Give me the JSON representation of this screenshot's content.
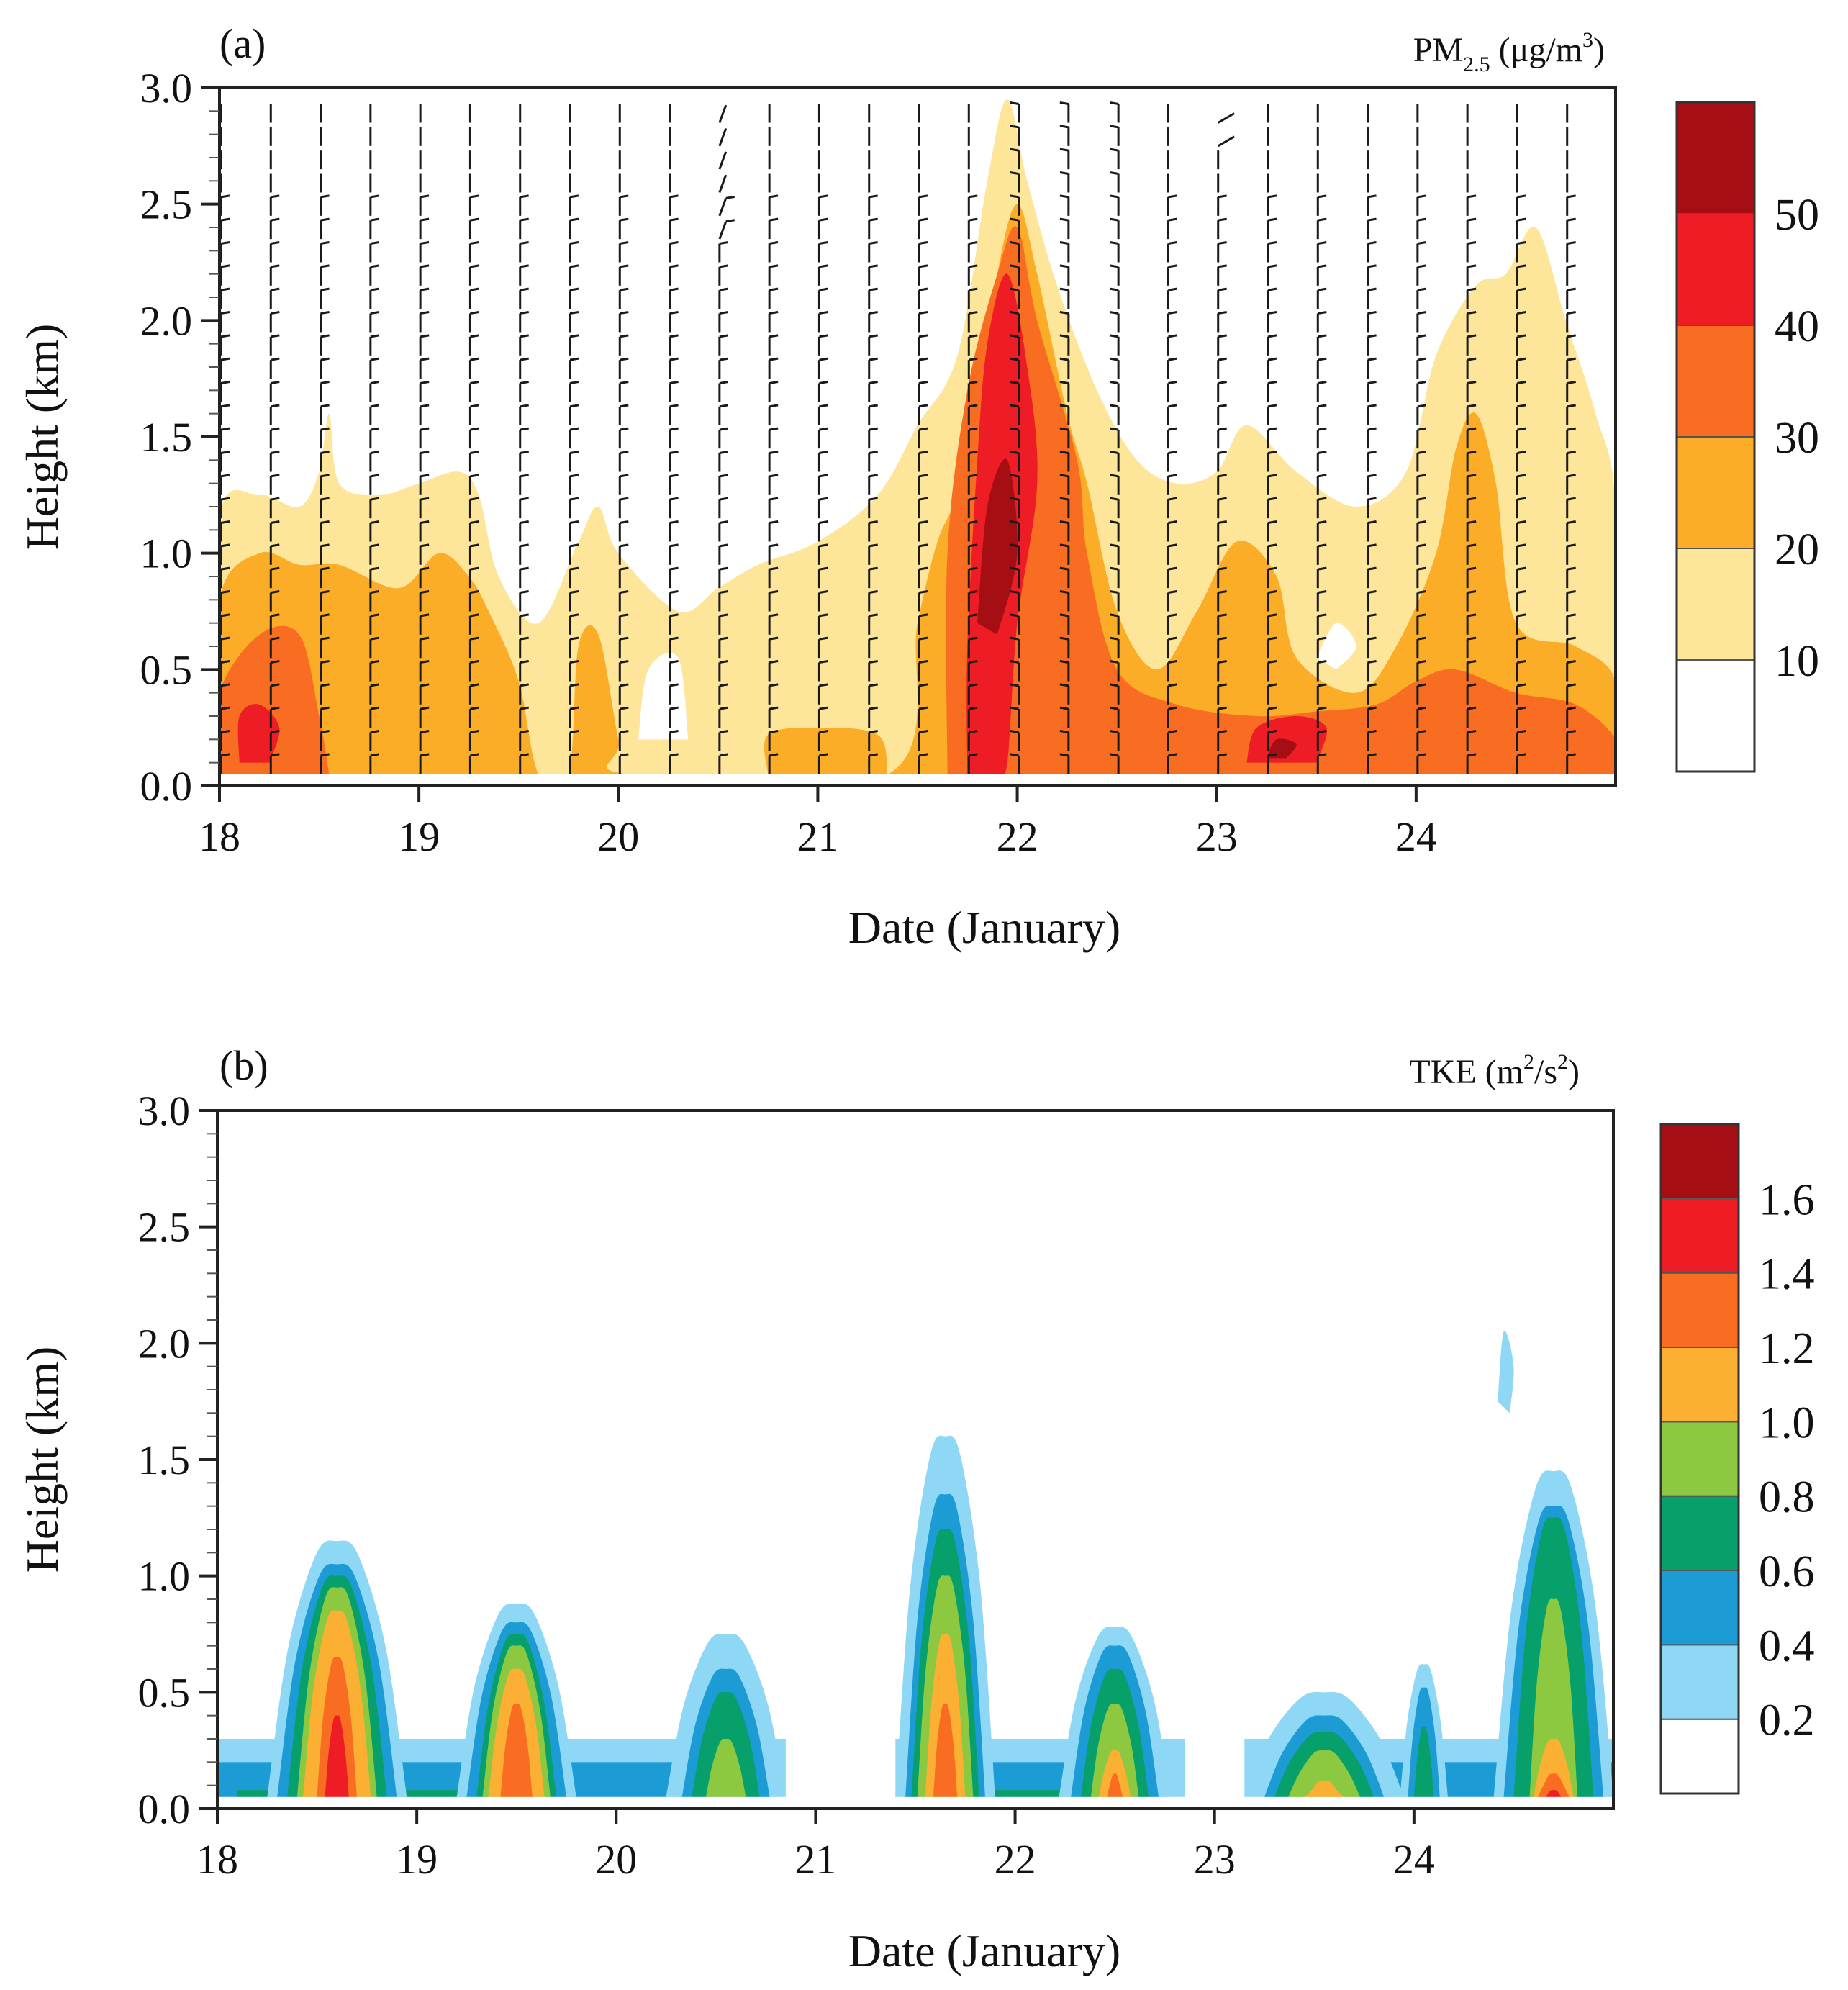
{
  "chart_data": [
    {
      "type": "heatmap",
      "panel_label": "(a)",
      "variable": {
        "name": "PM",
        "subscript": "2.5",
        "units_open": " (μg/m",
        "units_sup": "3",
        "units_close": ")"
      },
      "xlabel": "Date  (January)",
      "ylabel": "Height (km)",
      "x_ticks": [
        "18",
        "19",
        "20",
        "21",
        "22",
        "23",
        "24"
      ],
      "x_range": [
        18,
        25
      ],
      "y_ticks": [
        "0.0",
        "0.5",
        "1.0",
        "1.5",
        "2.0",
        "2.5",
        "3.0"
      ],
      "y_range": [
        0,
        3
      ],
      "colorbar": {
        "labels": [
          "10",
          "20",
          "30",
          "40",
          "50"
        ],
        "colors": [
          "#ffffff",
          "#fde59a",
          "#fbad27",
          "#f96d22",
          "#ee1c25",
          "#a50e12"
        ]
      },
      "contours": [
        {
          "level": 10,
          "color": "#fde59a",
          "points": [
            [
              18,
              0.05
            ],
            [
              18,
              1.15
            ],
            [
              18.2,
              1.25
            ],
            [
              18.4,
              1.2
            ],
            [
              18.5,
              1.35
            ],
            [
              18.55,
              1.6
            ],
            [
              18.6,
              1.3
            ],
            [
              18.8,
              1.25
            ],
            [
              19.0,
              1.3
            ],
            [
              19.2,
              1.35
            ],
            [
              19.3,
              1.25
            ],
            [
              19.4,
              0.9
            ],
            [
              19.6,
              0.7
            ],
            [
              19.8,
              1.05
            ],
            [
              19.9,
              1.2
            ],
            [
              20.0,
              1.0
            ],
            [
              20.3,
              0.75
            ],
            [
              20.5,
              0.85
            ],
            [
              20.7,
              0.95
            ],
            [
              21.0,
              1.05
            ],
            [
              21.3,
              1.25
            ],
            [
              21.5,
              1.55
            ],
            [
              21.7,
              1.85
            ],
            [
              21.85,
              2.6
            ],
            [
              21.95,
              2.95
            ],
            [
              22.05,
              2.6
            ],
            [
              22.2,
              2.15
            ],
            [
              22.4,
              1.7
            ],
            [
              22.6,
              1.4
            ],
            [
              22.8,
              1.3
            ],
            [
              23.0,
              1.35
            ],
            [
              23.15,
              1.55
            ],
            [
              23.4,
              1.35
            ],
            [
              23.7,
              1.2
            ],
            [
              23.95,
              1.35
            ],
            [
              24.1,
              1.85
            ],
            [
              24.3,
              2.15
            ],
            [
              24.45,
              2.2
            ],
            [
              24.6,
              2.4
            ],
            [
              24.75,
              2.0
            ],
            [
              24.9,
              1.6
            ],
            [
              25,
              1.2
            ],
            [
              25,
              0.05
            ]
          ]
        },
        {
          "level": 20,
          "color": "#fbad27",
          "points": [
            [
              18,
              0.05
            ],
            [
              18,
              0.8
            ],
            [
              18.2,
              1.0
            ],
            [
              18.4,
              0.95
            ],
            [
              18.6,
              0.95
            ],
            [
              18.9,
              0.85
            ],
            [
              19.1,
              1.0
            ],
            [
              19.25,
              0.9
            ],
            [
              19.35,
              0.75
            ],
            [
              19.5,
              0.45
            ],
            [
              19.6,
              0.05
            ],
            [
              19.75,
              0.05
            ],
            [
              19.8,
              0.6
            ],
            [
              19.9,
              0.65
            ],
            [
              20.0,
              0.2
            ],
            [
              20.05,
              0.05
            ],
            [
              21.35,
              0.05
            ],
            [
              21.5,
              0.7
            ],
            [
              21.6,
              1.05
            ],
            [
              21.7,
              1.25
            ],
            [
              21.8,
              1.6
            ],
            [
              21.9,
              2.2
            ],
            [
              22.0,
              2.5
            ],
            [
              22.1,
              2.2
            ],
            [
              22.25,
              1.6
            ],
            [
              22.35,
              1.3
            ],
            [
              22.5,
              0.75
            ],
            [
              22.7,
              0.5
            ],
            [
              22.9,
              0.75
            ],
            [
              23.1,
              1.05
            ],
            [
              23.3,
              0.9
            ],
            [
              23.4,
              0.55
            ],
            [
              23.7,
              0.4
            ],
            [
              23.9,
              0.6
            ],
            [
              24.1,
              1.0
            ],
            [
              24.2,
              1.45
            ],
            [
              24.3,
              1.6
            ],
            [
              24.4,
              1.3
            ],
            [
              24.5,
              0.7
            ],
            [
              24.8,
              0.6
            ],
            [
              25,
              0.45
            ],
            [
              25,
              0.05
            ]
          ]
        },
        {
          "level": 20,
          "color": "#fbad27",
          "points": [
            [
              20.75,
              0.05
            ],
            [
              20.75,
              0.22
            ],
            [
              21.0,
              0.25
            ],
            [
              21.3,
              0.22
            ],
            [
              21.35,
              0.05
            ]
          ]
        },
        {
          "level": 30,
          "color": "#f96d22",
          "points": [
            [
              18,
              0.05
            ],
            [
              18,
              0.4
            ],
            [
              18.2,
              0.65
            ],
            [
              18.4,
              0.65
            ],
            [
              18.5,
              0.3
            ],
            [
              18.55,
              0.05
            ]
          ]
        },
        {
          "level": 30,
          "color": "#f96d22",
          "points": [
            [
              21.65,
              0.05
            ],
            [
              21.65,
              1.0
            ],
            [
              21.75,
              1.7
            ],
            [
              21.9,
              2.2
            ],
            [
              22.0,
              2.4
            ],
            [
              22.1,
              2.0
            ],
            [
              22.3,
              1.4
            ],
            [
              22.35,
              1.0
            ],
            [
              22.5,
              0.5
            ],
            [
              22.8,
              0.35
            ],
            [
              23.2,
              0.3
            ],
            [
              23.5,
              0.32
            ],
            [
              23.8,
              0.35
            ],
            [
              24.0,
              0.45
            ],
            [
              24.2,
              0.5
            ],
            [
              24.5,
              0.4
            ],
            [
              24.8,
              0.35
            ],
            [
              25,
              0.2
            ],
            [
              25,
              0.05
            ]
          ]
        },
        {
          "level": 40,
          "color": "#ee1c25",
          "points": [
            [
              21.75,
              0.05
            ],
            [
              21.75,
              0.6
            ],
            [
              21.8,
              1.4
            ],
            [
              21.85,
              1.9
            ],
            [
              21.95,
              2.2
            ],
            [
              22.05,
              1.8
            ],
            [
              22.1,
              1.3
            ],
            [
              22.0,
              0.7
            ],
            [
              21.95,
              0.1
            ],
            [
              21.9,
              0.05
            ]
          ]
        },
        {
          "level": 40,
          "color": "#ee1c25",
          "points": [
            [
              18.1,
              0.1
            ],
            [
              18.1,
              0.3
            ],
            [
              18.2,
              0.35
            ],
            [
              18.3,
              0.25
            ],
            [
              18.25,
              0.1
            ]
          ]
        },
        {
          "level": 40,
          "color": "#ee1c25",
          "points": [
            [
              23.15,
              0.1
            ],
            [
              23.2,
              0.25
            ],
            [
              23.4,
              0.3
            ],
            [
              23.55,
              0.25
            ],
            [
              23.5,
              0.1
            ]
          ]
        },
        {
          "level": 50,
          "color": "#a50e12",
          "points": [
            [
              21.8,
              0.7
            ],
            [
              21.85,
              1.2
            ],
            [
              21.95,
              1.4
            ],
            [
              22.0,
              1.0
            ],
            [
              21.9,
              0.65
            ]
          ]
        },
        {
          "level": 50,
          "color": "#a50e12",
          "points": [
            [
              23.25,
              0.12
            ],
            [
              23.3,
              0.2
            ],
            [
              23.4,
              0.18
            ],
            [
              23.35,
              0.12
            ]
          ]
        }
      ],
      "holes": [
        {
          "points": [
            [
              20.1,
              0.2
            ],
            [
              20.15,
              0.5
            ],
            [
              20.3,
              0.55
            ],
            [
              20.35,
              0.2
            ]
          ]
        },
        {
          "points": [
            [
              23.5,
              0.55
            ],
            [
              23.6,
              0.7
            ],
            [
              23.7,
              0.6
            ],
            [
              23.6,
              0.5
            ]
          ]
        }
      ],
      "wind_barbs": "shown"
    },
    {
      "type": "heatmap",
      "panel_label": "(b)",
      "variable": {
        "name": "TKE (m",
        "sup1": "2",
        "mid": "/s",
        "sup2": "2",
        "close": ")"
      },
      "xlabel": "Date  (January)",
      "ylabel": "Height (km)",
      "x_ticks": [
        "18",
        "19",
        "20",
        "21",
        "22",
        "23",
        "24"
      ],
      "x_range": [
        18,
        25
      ],
      "y_ticks": [
        "0.0",
        "0.5",
        "1.0",
        "1.5",
        "2.0",
        "2.5",
        "3.0"
      ],
      "y_range": [
        0,
        3
      ],
      "colorbar": {
        "labels": [
          "0.2",
          "0.4",
          "0.6",
          "0.8",
          "1.0",
          "1.2",
          "1.4",
          "1.6"
        ],
        "colors": [
          "#ffffff",
          "#8fd8f5",
          "#1d9bd5",
          "#07a06a",
          "#8dc940",
          "#fbb034",
          "#f96d22",
          "#ee1c25",
          "#a50e12"
        ]
      },
      "peaks": [
        {
          "center": 18.6,
          "levels": [
            [
              0.2,
              0.35,
              1.15
            ],
            [
              0.4,
              0.3,
              1.05
            ],
            [
              0.6,
              0.25,
              1.0
            ],
            [
              0.8,
              0.2,
              0.95
            ],
            [
              1.0,
              0.17,
              0.85
            ],
            [
              1.2,
              0.1,
              0.65
            ],
            [
              1.4,
              0.06,
              0.4
            ]
          ]
        },
        {
          "center": 19.5,
          "levels": [
            [
              0.2,
              0.3,
              0.88
            ],
            [
              0.4,
              0.25,
              0.8
            ],
            [
              0.6,
              0.2,
              0.75
            ],
            [
              0.8,
              0.17,
              0.7
            ],
            [
              1.0,
              0.14,
              0.6
            ],
            [
              1.2,
              0.08,
              0.45
            ]
          ]
        },
        {
          "center": 20.55,
          "levels": [
            [
              0.2,
              0.3,
              0.75
            ],
            [
              0.4,
              0.22,
              0.6
            ],
            [
              0.6,
              0.17,
              0.5
            ],
            [
              0.8,
              0.1,
              0.3
            ]
          ]
        },
        {
          "center": 21.65,
          "levels": [
            [
              0.2,
              0.25,
              1.6
            ],
            [
              0.4,
              0.2,
              1.35
            ],
            [
              0.6,
              0.17,
              1.2
            ],
            [
              0.8,
              0.14,
              1.0
            ],
            [
              1.0,
              0.1,
              0.75
            ],
            [
              1.2,
              0.06,
              0.45
            ]
          ]
        },
        {
          "center": 22.5,
          "levels": [
            [
              0.2,
              0.28,
              0.78
            ],
            [
              0.4,
              0.22,
              0.7
            ],
            [
              0.6,
              0.17,
              0.6
            ],
            [
              0.8,
              0.12,
              0.45
            ],
            [
              1.0,
              0.08,
              0.25
            ],
            [
              1.2,
              0.04,
              0.15
            ]
          ]
        },
        {
          "center": 23.55,
          "levels": [
            [
              0.2,
              0.4,
              0.5
            ],
            [
              0.4,
              0.3,
              0.4
            ],
            [
              0.6,
              0.25,
              0.33
            ],
            [
              0.8,
              0.18,
              0.25
            ],
            [
              1.0,
              0.1,
              0.12
            ]
          ]
        },
        {
          "center": 24.05,
          "levels": [
            [
              0.2,
              0.12,
              0.62
            ],
            [
              0.4,
              0.08,
              0.52
            ],
            [
              0.6,
              0.05,
              0.35
            ]
          ]
        },
        {
          "center": 24.7,
          "levels": [
            [
              0.2,
              0.3,
              1.45
            ],
            [
              0.4,
              0.25,
              1.3
            ],
            [
              0.6,
              0.2,
              1.25
            ],
            [
              0.8,
              0.12,
              0.9
            ],
            [
              1.0,
              0.1,
              0.3
            ],
            [
              1.2,
              0.08,
              0.15
            ],
            [
              1.4,
              0.06,
              0.08
            ]
          ]
        }
      ],
      "background_bands": [
        {
          "level": 0.2,
          "segments": [
            [
              18.0,
              20.85,
              0.3
            ],
            [
              21.4,
              22.85,
              0.3
            ],
            [
              23.15,
              25.0,
              0.3
            ]
          ]
        },
        {
          "level": 0.4,
          "segments": [
            [
              18.0,
              20.7,
              0.2
            ],
            [
              21.5,
              22.75,
              0.2
            ],
            [
              23.3,
              25.0,
              0.2
            ]
          ]
        },
        {
          "level": 0.6,
          "segments": [
            [
              18.1,
              19.8,
              0.08
            ],
            [
              21.8,
              22.4,
              0.08
            ]
          ]
        }
      ],
      "isolated_patches": [
        {
          "level": 0.2,
          "points": [
            [
              24.42,
              1.75
            ],
            [
              24.45,
              2.05
            ],
            [
              24.5,
              1.9
            ],
            [
              24.48,
              1.7
            ]
          ]
        }
      ]
    }
  ]
}
